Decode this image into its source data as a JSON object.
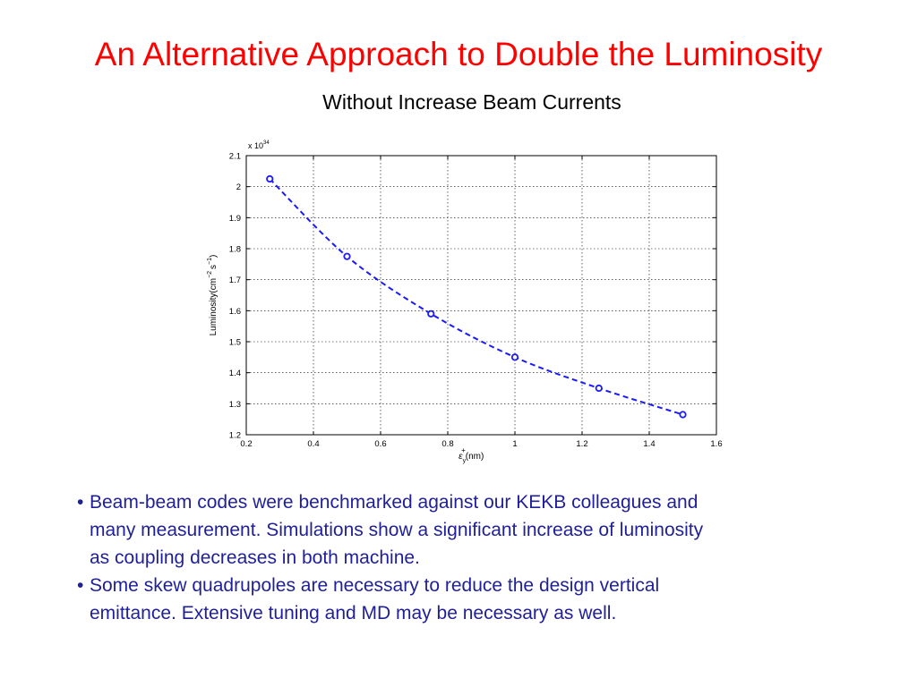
{
  "slide": {
    "title": "An Alternative Approach to Double the Luminosity",
    "subtitle": "Without Increase Beam Currents"
  },
  "chart_data": {
    "type": "line",
    "title": "",
    "xlabel_symbol": "ε",
    "xlabel_sub": "y",
    "xlabel_sup": "+",
    "xlabel_unit": "(nm)",
    "ylabel": "Luminosity(cm",
    "ylabel_exp1": "−2",
    "ylabel_mid": "s",
    "ylabel_exp2": "−1",
    "ylabel_end": ")",
    "y_multiplier": "x 10",
    "y_multiplier_exp": "34",
    "xlim": [
      0.2,
      1.6
    ],
    "ylim": [
      1.2,
      2.1
    ],
    "xticks": [
      0.2,
      0.4,
      0.6,
      0.8,
      1,
      1.2,
      1.4,
      1.6
    ],
    "yticks": [
      1.2,
      1.3,
      1.4,
      1.5,
      1.6,
      1.7,
      1.8,
      1.9,
      2,
      2.1
    ],
    "grid": true,
    "line_style": "dashed",
    "marker": "circle",
    "color": "#1a1aff",
    "x": [
      0.27,
      0.5,
      0.75,
      1.0,
      1.25,
      1.5
    ],
    "y": [
      2.025,
      1.775,
      1.59,
      1.45,
      1.35,
      1.265
    ]
  },
  "bullets": [
    {
      "marker": "•",
      "lines": [
        "Beam-beam codes were benchmarked against our KEKB colleagues and",
        "many measurement. Simulations show a significant increase of luminosity",
        "as coupling decreases in both machine."
      ]
    },
    {
      "marker": "•",
      "lines": [
        "Some skew quadrupoles are necessary to reduce the design vertical",
        "emittance. Extensive tuning and MD may be necessary as well."
      ]
    }
  ]
}
